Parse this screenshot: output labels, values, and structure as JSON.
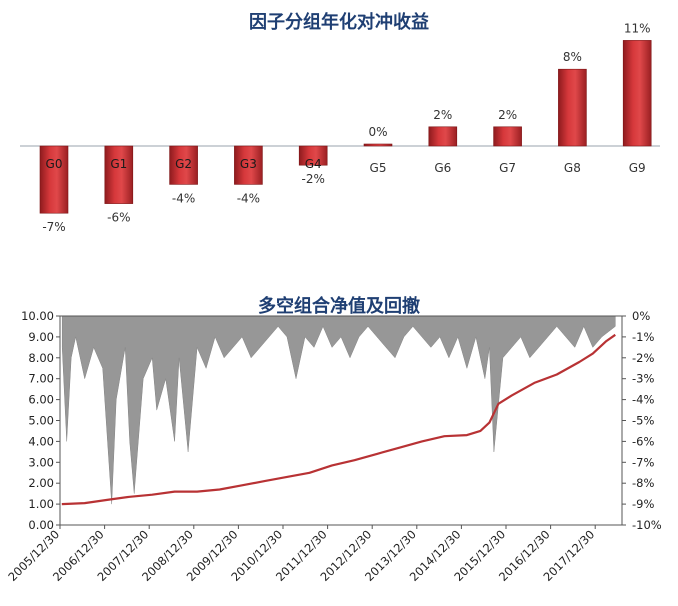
{
  "chart_data": [
    {
      "type": "bar",
      "title": "因子分组年化对冲收益",
      "categories": [
        "G0",
        "G1",
        "G2",
        "G3",
        "G4",
        "G5",
        "G6",
        "G7",
        "G8",
        "G9"
      ],
      "values": [
        -7,
        -6,
        -4,
        -4,
        -2,
        0,
        2,
        2,
        8,
        11
      ],
      "value_labels": [
        "-7%",
        "-6%",
        "-4%",
        "-4%",
        "-2%",
        "0%",
        "2%",
        "2%",
        "8%",
        "11%"
      ],
      "bar_color": "#c0282c",
      "ylim": [
        -8,
        12
      ]
    },
    {
      "type": "line",
      "title": "多空组合净值及回撤",
      "x_ticks": [
        "2005/12/30",
        "2006/12/30",
        "2007/12/30",
        "2008/12/30",
        "2009/12/30",
        "2010/12/30",
        "2011/12/30",
        "2012/12/30",
        "2013/12/30",
        "2014/12/30",
        "2015/12/30",
        "2016/12/30",
        "2017/12/30"
      ],
      "y_left_ticks": [
        "0.00",
        "1.00",
        "2.00",
        "3.00",
        "4.00",
        "5.00",
        "6.00",
        "7.00",
        "8.00",
        "9.00",
        "10.00"
      ],
      "y_left_lim": [
        0,
        10
      ],
      "y_right_ticks": [
        "0%",
        "-1%",
        "-2%",
        "-3%",
        "-4%",
        "-5%",
        "-6%",
        "-7%",
        "-8%",
        "-9%",
        "-10%"
      ],
      "y_right_lim": [
        -10,
        0
      ],
      "series": [
        {
          "type": "line",
          "axis": "left",
          "color": "#b83234",
          "x": [
            2005.99,
            2006.5,
            2007.0,
            2007.5,
            2008.0,
            2008.5,
            2009.0,
            2009.5,
            2010.0,
            2010.5,
            2011.0,
            2011.5,
            2012.0,
            2012.5,
            2013.0,
            2013.5,
            2014.0,
            2014.5,
            2015.0,
            2015.3,
            2015.5,
            2015.7,
            2016.0,
            2016.5,
            2017.0,
            2017.5,
            2017.8,
            2018.1,
            2018.3
          ],
          "y": [
            1.0,
            1.05,
            1.2,
            1.35,
            1.45,
            1.6,
            1.6,
            1.7,
            1.9,
            2.1,
            2.3,
            2.5,
            2.85,
            3.1,
            3.4,
            3.7,
            4.0,
            4.25,
            4.3,
            4.5,
            4.9,
            5.8,
            6.2,
            6.8,
            7.2,
            7.8,
            8.2,
            8.8,
            9.1
          ]
        },
        {
          "type": "area",
          "axis": "right",
          "color": "#8c8c8c",
          "x": [
            2006.0,
            2006.1,
            2006.2,
            2006.3,
            2006.5,
            2006.7,
            2006.9,
            2007.1,
            2007.2,
            2007.4,
            2007.5,
            2007.6,
            2007.8,
            2008.0,
            2008.1,
            2008.3,
            2008.5,
            2008.6,
            2008.8,
            2009.0,
            2009.2,
            2009.4,
            2009.6,
            2009.8,
            2010.0,
            2010.2,
            2010.4,
            2010.6,
            2010.8,
            2011.0,
            2011.2,
            2011.4,
            2011.6,
            2011.8,
            2012.0,
            2012.2,
            2012.4,
            2012.6,
            2012.8,
            2013.0,
            2013.2,
            2013.4,
            2013.6,
            2013.8,
            2014.0,
            2014.2,
            2014.4,
            2014.6,
            2014.8,
            2015.0,
            2015.2,
            2015.4,
            2015.5,
            2015.6,
            2015.8,
            2016.0,
            2016.2,
            2016.4,
            2016.6,
            2016.8,
            2017.0,
            2017.2,
            2017.4,
            2017.6,
            2017.8,
            2018.0,
            2018.3
          ],
          "y": [
            -1.5,
            -6.0,
            -2.0,
            -1.0,
            -3.0,
            -1.5,
            -2.5,
            -9.0,
            -4.0,
            -1.5,
            -6.0,
            -8.5,
            -3.0,
            -2.0,
            -4.5,
            -3.0,
            -6.0,
            -2.0,
            -6.5,
            -1.5,
            -2.5,
            -1.0,
            -2.0,
            -1.5,
            -1.0,
            -2.0,
            -1.5,
            -1.0,
            -0.5,
            -1.0,
            -3.0,
            -1.0,
            -1.5,
            -0.5,
            -1.5,
            -1.0,
            -2.0,
            -1.0,
            -0.5,
            -1.0,
            -1.5,
            -2.0,
            -1.0,
            -0.5,
            -1.0,
            -1.5,
            -1.0,
            -2.0,
            -1.0,
            -2.5,
            -1.0,
            -3.0,
            -1.5,
            -6.5,
            -2.0,
            -1.5,
            -1.0,
            -2.0,
            -1.5,
            -1.0,
            -0.5,
            -1.0,
            -1.5,
            -0.5,
            -1.5,
            -1.0,
            -0.5
          ]
        }
      ]
    }
  ]
}
